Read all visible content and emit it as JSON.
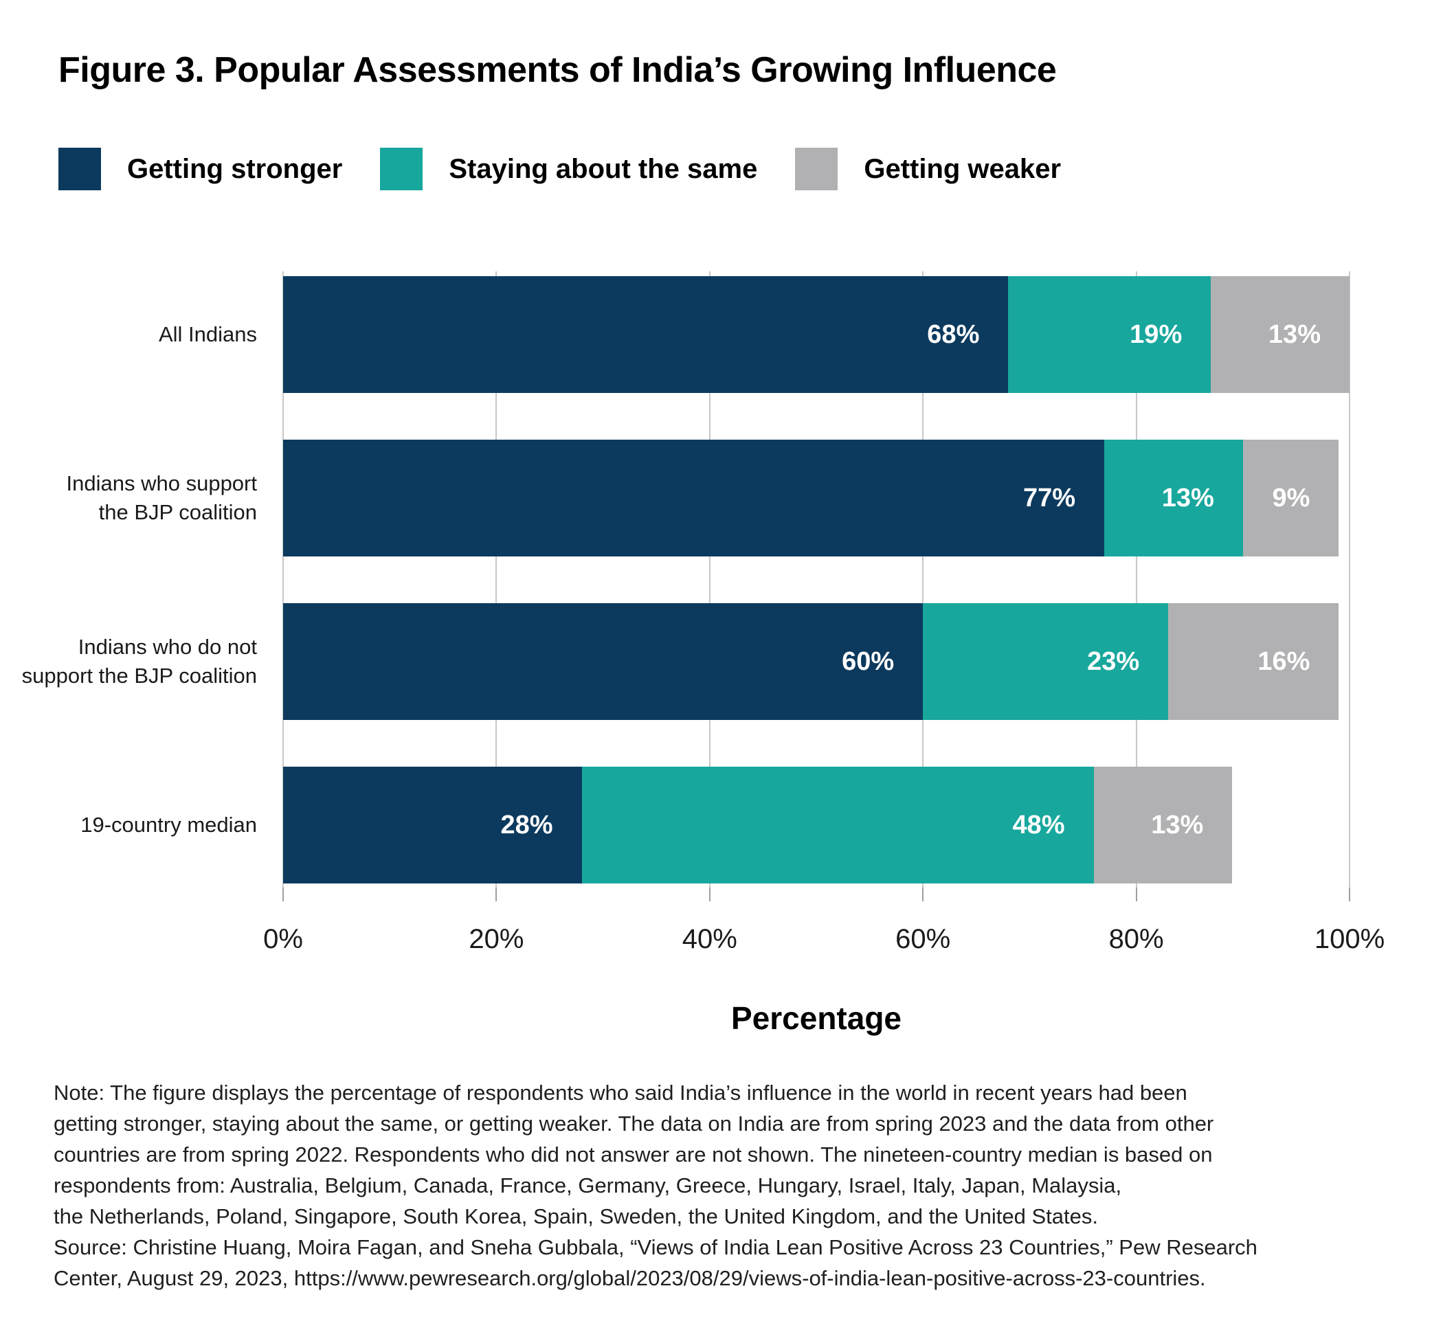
{
  "title": "Figure 3. Popular Assessments of India’s Growing Influence",
  "note": "Note: The figure displays the percentage of respondents who said India’s influence in the world in recent years had been\ngetting stronger, staying about the same, or getting weaker. The data on India are from spring 2023 and the data from other\ncountries are from spring 2022. Respondents who did not answer are not shown. The nineteen-country median is based on\nrespondents from: Australia, Belgium, Canada, France, Germany, Greece, Hungary, Israel, Italy, Japan, Malaysia,\nthe Netherlands, Poland, Singapore, South Korea, Spain, Sweden, the United Kingdom, and the United States.\nSource: Christine Huang, Moira Fagan, and Sneha Gubbala, “Views of India Lean Positive Across 23 Countries,” Pew Research\nCenter, August 29, 2023, https://www.pewresearch.org/global/2023/08/29/views-of-india-lean-positive-across-23-countries.",
  "colors": {
    "getting_stronger": "#0c3a5e",
    "staying_same": "#18a79d",
    "getting_weaker": "#b1b1b3",
    "gridline": "#c8c8c8",
    "bar_value_text": "#ffffff"
  },
  "chart_data": {
    "type": "bar",
    "orientation": "horizontal",
    "stacked": true,
    "title": "Figure 3. Popular Assessments of India’s Growing Influence",
    "categories": [
      "All Indians",
      "Indians who support the BJP coalition",
      "Indians who do not support the BJP coalition",
      "19-country median"
    ],
    "categories_display": [
      "All Indians",
      "Indians who support\nthe BJP coalition",
      "Indians who do not\nsupport the BJP coalition",
      "19-country median"
    ],
    "series": [
      {
        "name": "Getting stronger",
        "color": "#0c3a5e",
        "values": [
          68,
          77,
          60,
          28
        ]
      },
      {
        "name": "Staying about the same",
        "color": "#18a79d",
        "values": [
          19,
          13,
          23,
          48
        ]
      },
      {
        "name": "Getting weaker",
        "color": "#b1b1b3",
        "values": [
          13,
          9,
          16,
          13
        ]
      }
    ],
    "value_suffix": "%",
    "xlabel": "Percentage",
    "xlim": [
      0,
      100
    ],
    "xticks": [
      {
        "label": "0%",
        "value": 0
      },
      {
        "label": "20%",
        "value": 20
      },
      {
        "label": "40%",
        "value": 40
      },
      {
        "label": "60%",
        "value": 60
      },
      {
        "label": "80%",
        "value": 80
      },
      {
        "label": "100%",
        "value": 100
      }
    ],
    "grid": true,
    "legend_position": "top"
  }
}
